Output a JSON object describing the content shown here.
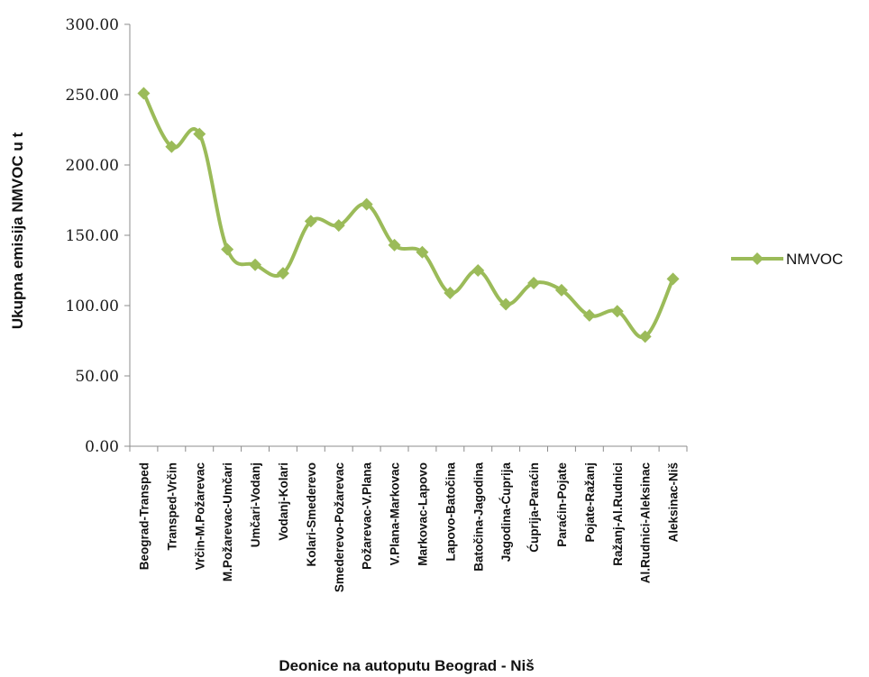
{
  "chart_data": {
    "type": "line",
    "title": "",
    "xlabel": "Deonice na autoputu Beograd - Niš",
    "ylabel": "Ukupna emisija NMVOC u t",
    "ylim": [
      0,
      300
    ],
    "y_ticks": [
      "0.00",
      "50.00",
      "100.00",
      "150.00",
      "200.00",
      "250.00",
      "300.00"
    ],
    "grid": false,
    "legend_position": "right",
    "categories": [
      "Beograd-Transped",
      "Transped-Vrčin",
      "Vrčin-M.Požarevac",
      "M.Požarevac-Umčari",
      "Umčari-Vodanj",
      "Vodanj-Kolari",
      "Kolari-Smederevo",
      "Smederevo-Požarevac",
      "Požarevac-V.Plana",
      "V.Plana-Markovac",
      "Markovac-Lapovo",
      "Lapovo-Batočina",
      "Batočina-Jagodina",
      "Jagodina-Ćuprija",
      "Ćuprija-Paraćin",
      "Paraćin-Pojate",
      "Pojate-Ražanj",
      "Ražanj-Al.Rudnici",
      "Al.Rudnici-Aleksinac",
      "Aleksinac-Niš"
    ],
    "series": [
      {
        "name": "NMVOC",
        "color": "#9bbb59",
        "marker": "diamond",
        "values": [
          251,
          213,
          222,
          140,
          129,
          123,
          160,
          157,
          172,
          143,
          138,
          109,
          125,
          101,
          116,
          111,
          93,
          96,
          78,
          119
        ]
      }
    ]
  }
}
